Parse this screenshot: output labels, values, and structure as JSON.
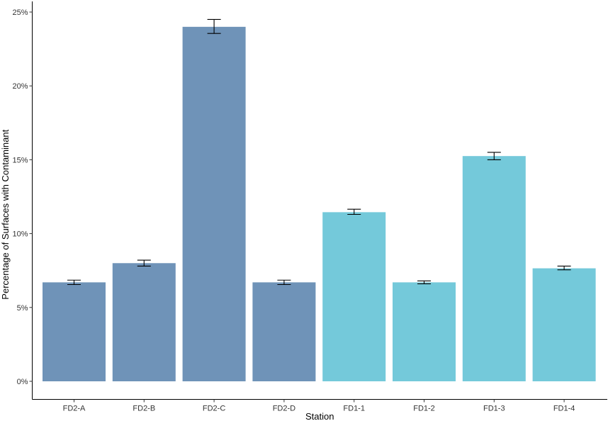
{
  "chart_data": {
    "type": "bar",
    "title": "",
    "xlabel": "Station",
    "ylabel": "Percentage of Surfaces with Contaminant",
    "categories": [
      "FD2-A",
      "FD2-B",
      "FD2-C",
      "FD2-D",
      "FD1-1",
      "FD1-2",
      "FD1-3",
      "FD1-4"
    ],
    "values": [
      6.7,
      8.0,
      24.0,
      6.7,
      11.45,
      6.7,
      15.25,
      7.65
    ],
    "error_low": [
      6.55,
      7.8,
      23.55,
      6.55,
      11.3,
      6.6,
      15.0,
      7.55
    ],
    "error_high": [
      6.85,
      8.2,
      24.5,
      6.85,
      11.65,
      6.8,
      15.5,
      7.8
    ],
    "bar_colors": [
      "#6f93b8",
      "#6f93b8",
      "#6f93b8",
      "#6f93b8",
      "#74c9da",
      "#74c9da",
      "#74c9da",
      "#74c9da"
    ],
    "ylim": [
      0,
      25
    ],
    "yticks": [
      0,
      5,
      10,
      15,
      20,
      25
    ],
    "ytick_labels": [
      "0%",
      "5%",
      "10%",
      "15%",
      "20%",
      "25%"
    ],
    "grid": false,
    "legend": "none",
    "error_bars": true
  }
}
